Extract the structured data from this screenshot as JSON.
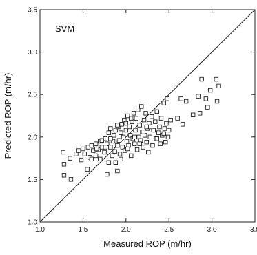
{
  "chart_data": {
    "type": "scatter",
    "title": "",
    "annotation": "SVM",
    "xlabel": "Measured ROP (m/hr)",
    "ylabel": "Predicted ROP (m/hr)",
    "xlim": [
      1.0,
      3.5
    ],
    "ylim": [
      1.0,
      3.5
    ],
    "xticks": [
      "1.0",
      "1.5",
      "2.0",
      "2.5",
      "3.0",
      "3.5"
    ],
    "yticks": [
      "1.0",
      "1.5",
      "2.0",
      "2.5",
      "3.0",
      "3.5"
    ],
    "grid": false,
    "legend": "none",
    "reference_line": {
      "from": [
        1.0,
        1.0
      ],
      "to": [
        3.5,
        3.5
      ]
    },
    "marker": "hollow-square",
    "points": [
      [
        1.27,
        1.82
      ],
      [
        1.28,
        1.55
      ],
      [
        1.28,
        1.68
      ],
      [
        1.36,
        1.5
      ],
      [
        1.35,
        1.75
      ],
      [
        1.42,
        1.8
      ],
      [
        1.45,
        1.84
      ],
      [
        1.48,
        1.73
      ],
      [
        1.5,
        1.86
      ],
      [
        1.52,
        1.8
      ],
      [
        1.55,
        1.62
      ],
      [
        1.56,
        1.88
      ],
      [
        1.58,
        1.76
      ],
      [
        1.6,
        1.9
      ],
      [
        1.62,
        1.84
      ],
      [
        1.65,
        1.78
      ],
      [
        1.65,
        1.92
      ],
      [
        1.68,
        1.85
      ],
      [
        1.7,
        1.95
      ],
      [
        1.7,
        1.74
      ],
      [
        1.72,
        1.88
      ],
      [
        1.75,
        1.82
      ],
      [
        1.76,
        1.98
      ],
      [
        1.78,
        1.56
      ],
      [
        1.78,
        1.92
      ],
      [
        1.8,
        1.7
      ],
      [
        1.8,
        2.05
      ],
      [
        1.82,
        1.88
      ],
      [
        1.82,
        2.1
      ],
      [
        1.84,
        1.78
      ],
      [
        1.85,
        1.95
      ],
      [
        1.86,
        2.02
      ],
      [
        1.87,
        1.83
      ],
      [
        1.88,
        2.08
      ],
      [
        1.9,
        1.6
      ],
      [
        1.9,
        1.9
      ],
      [
        1.91,
        2.12
      ],
      [
        1.92,
        1.96
      ],
      [
        1.93,
        1.8
      ],
      [
        1.94,
        2.05
      ],
      [
        1.95,
        2.15
      ],
      [
        1.96,
        1.88
      ],
      [
        1.97,
        2.0
      ],
      [
        1.98,
        2.2
      ],
      [
        1.99,
        1.84
      ],
      [
        2.0,
        2.08
      ],
      [
        2.01,
        1.95
      ],
      [
        2.02,
        2.25
      ],
      [
        2.03,
        1.9
      ],
      [
        2.04,
        2.12
      ],
      [
        2.05,
        2.02
      ],
      [
        2.06,
        1.78
      ],
      [
        2.07,
        2.18
      ],
      [
        2.08,
        1.98
      ],
      [
        2.09,
        2.28
      ],
      [
        2.1,
        1.92
      ],
      [
        2.11,
        2.08
      ],
      [
        2.12,
        2.22
      ],
      [
        2.13,
        1.85
      ],
      [
        2.14,
        2.32
      ],
      [
        2.15,
        2.0
      ],
      [
        2.16,
        2.14
      ],
      [
        2.17,
        1.96
      ],
      [
        2.18,
        2.36
      ],
      [
        2.19,
        2.06
      ],
      [
        2.2,
        1.88
      ],
      [
        2.21,
        2.2
      ],
      [
        2.22,
        2.02
      ],
      [
        2.23,
        2.28
      ],
      [
        2.24,
        1.94
      ],
      [
        2.25,
        2.1
      ],
      [
        2.26,
        1.82
      ],
      [
        2.27,
        2.16
      ],
      [
        2.28,
        2.0
      ],
      [
        2.3,
        2.24
      ],
      [
        2.31,
        1.9
      ],
      [
        2.32,
        2.08
      ],
      [
        2.34,
        2.18
      ],
      [
        2.35,
        1.98
      ],
      [
        2.36,
        2.3
      ],
      [
        2.38,
        2.05
      ],
      [
        2.39,
        2.12
      ],
      [
        2.4,
        1.92
      ],
      [
        2.41,
        2.22
      ],
      [
        2.42,
        2.02
      ],
      [
        2.44,
        2.4
      ],
      [
        2.45,
        2.1
      ],
      [
        2.46,
        1.94
      ],
      [
        2.47,
        2.16
      ],
      [
        2.48,
        2.45
      ],
      [
        2.49,
        2.0
      ],
      [
        2.5,
        2.08
      ],
      [
        2.52,
        2.2
      ],
      [
        2.6,
        2.22
      ],
      [
        2.64,
        2.45
      ],
      [
        2.66,
        2.15
      ],
      [
        2.7,
        2.42
      ],
      [
        2.78,
        2.26
      ],
      [
        2.84,
        2.48
      ],
      [
        2.86,
        2.28
      ],
      [
        2.88,
        2.68
      ],
      [
        2.93,
        2.45
      ],
      [
        2.95,
        2.35
      ],
      [
        2.98,
        2.55
      ],
      [
        3.05,
        2.68
      ],
      [
        3.06,
        2.42
      ],
      [
        3.08,
        2.6
      ],
      [
        1.6,
        1.74
      ],
      [
        1.72,
        1.96
      ],
      [
        1.88,
        1.7
      ],
      [
        1.94,
        1.74
      ],
      [
        2.02,
        1.86
      ],
      [
        2.1,
        2.0
      ],
      [
        2.16,
        1.92
      ],
      [
        2.28,
        2.12
      ],
      [
        1.66,
        1.86
      ],
      [
        1.82,
        1.98
      ],
      [
        1.9,
        2.14
      ],
      [
        2.0,
        2.16
      ],
      [
        2.06,
        2.22
      ],
      [
        2.2,
        2.06
      ],
      [
        2.24,
        2.12
      ],
      [
        2.36,
        1.98
      ],
      [
        2.44,
        2.04
      ],
      [
        1.76,
        1.88
      ]
    ]
  }
}
